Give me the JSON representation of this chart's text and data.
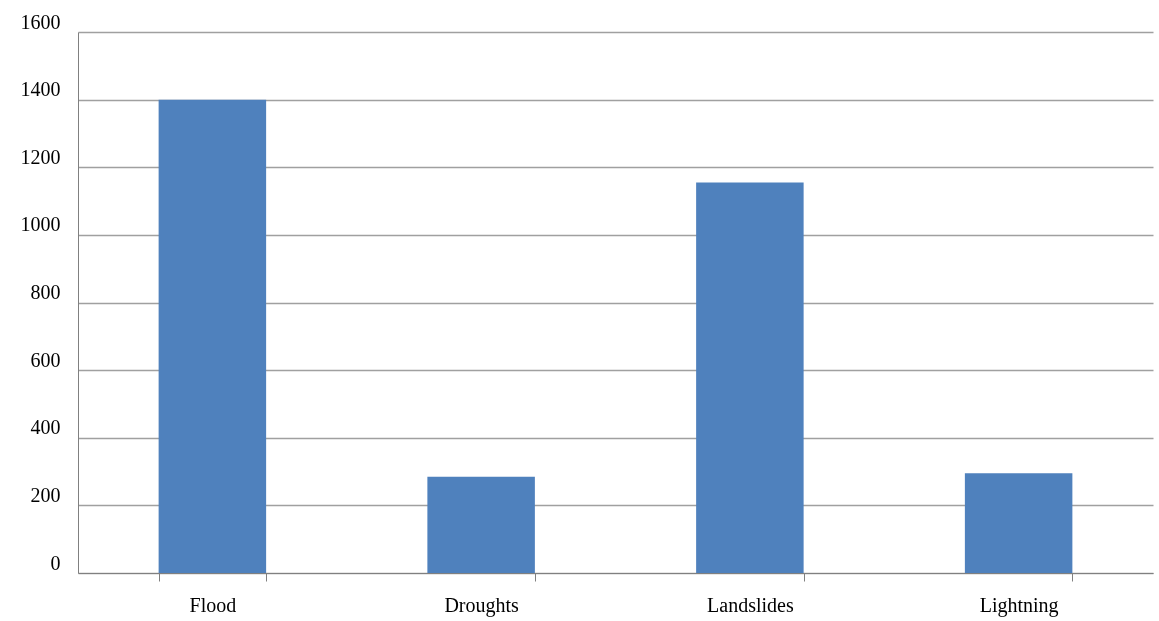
{
  "chart_data": {
    "type": "bar",
    "categories": [
      "Flood",
      "Droughts",
      "Landslides",
      "Lightning"
    ],
    "values": [
      1400,
      285,
      1155,
      295
    ],
    "color": "#4f81bd",
    "ylim": [
      0,
      1600
    ],
    "yticks": [
      0,
      200,
      400,
      600,
      800,
      1000,
      1200,
      1400,
      1600
    ],
    "grid": "y"
  }
}
